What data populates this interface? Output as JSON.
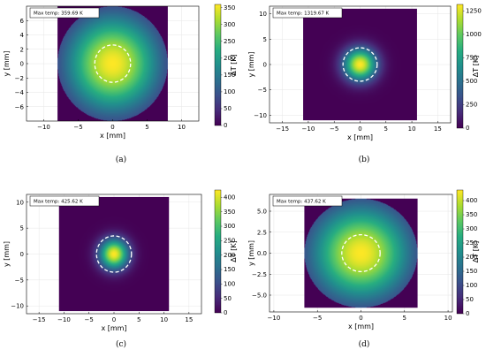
{
  "colors": {
    "viridis": [
      "#440154",
      "#472c7a",
      "#3b518b",
      "#2c718e",
      "#21908d",
      "#27ad81",
      "#5cc863",
      "#aadc32",
      "#fde725"
    ],
    "background": "#440154",
    "beam_circle": "#ffffff"
  },
  "chart_data": [
    {
      "id": "a",
      "type": "heatmap",
      "caption": "(a)",
      "legend": "Max temp: 359.69 K",
      "xlabel": "x [mm]",
      "ylabel": "y [mm]",
      "cbar_label": "ΔT [K]",
      "xlim": [
        -12.5,
        12.5
      ],
      "ylim": [
        -8,
        8
      ],
      "xticks": [
        -10,
        -5,
        0,
        5,
        10
      ],
      "xticklabels": [
        "−10",
        "−5",
        "0",
        "5",
        "10"
      ],
      "yticks": [
        -6,
        -4,
        -2,
        0,
        2,
        4,
        6
      ],
      "yticklabels": [
        "−6",
        "−4",
        "−2",
        "0",
        "2",
        "4",
        "6"
      ],
      "square": [
        -8,
        8,
        -8,
        8
      ],
      "disk_radius": 8,
      "beam_radius": 2.6,
      "spread": 4.8,
      "max_temp": 359.69,
      "cbar_ticks": [
        0,
        50,
        100,
        150,
        200,
        250,
        300,
        350
      ],
      "cbar_ticklabels": [
        "0",
        "50",
        "100",
        "150",
        "200",
        "250",
        "300",
        "350"
      ]
    },
    {
      "id": "b",
      "type": "heatmap",
      "caption": "(b)",
      "legend": "Max temp: 1319.67 K",
      "xlabel": "x [mm]",
      "ylabel": "y [mm]",
      "cbar_label": "ΔT [K]",
      "xlim": [
        -17.5,
        17.5
      ],
      "ylim": [
        -11.5,
        11.5
      ],
      "xticks": [
        -15,
        -10,
        -5,
        0,
        5,
        10,
        15
      ],
      "xticklabels": [
        "−15",
        "−10",
        "−5",
        "0",
        "5",
        "10",
        "15"
      ],
      "yticks": [
        -10,
        -5,
        0,
        5,
        10
      ],
      "yticklabels": [
        "−10",
        "−5",
        "0",
        "5",
        "10"
      ],
      "square": [
        -11,
        11,
        -11,
        11
      ],
      "disk_radius": null,
      "beam_radius": 3.3,
      "spread": 2.2,
      "max_temp": 1319.67,
      "cbar_ticks": [
        0,
        250,
        500,
        750,
        1000,
        1250
      ],
      "cbar_ticklabels": [
        "0",
        "250",
        "500",
        "750",
        "1000",
        "1250"
      ]
    },
    {
      "id": "c",
      "type": "heatmap",
      "caption": "(c)",
      "legend": "Max temp: 425.62 K",
      "xlabel": "x [mm]",
      "ylabel": "y [mm]",
      "cbar_label": "ΔT [K]",
      "xlim": [
        -17.5,
        17.5
      ],
      "ylim": [
        -11.5,
        11.5
      ],
      "xticks": [
        -15,
        -10,
        -5,
        0,
        5,
        10,
        15
      ],
      "xticklabels": [
        "−15",
        "−10",
        "−5",
        "0",
        "5",
        "10",
        "15"
      ],
      "yticks": [
        -10,
        -5,
        0,
        5,
        10
      ],
      "yticklabels": [
        "−10",
        "−5",
        "0",
        "5",
        "10"
      ],
      "square": [
        -11,
        11,
        -11,
        11
      ],
      "disk_radius": null,
      "beam_radius": 3.5,
      "spread": 2.0,
      "max_temp": 425.62,
      "cbar_ticks": [
        0,
        50,
        100,
        150,
        200,
        250,
        300,
        350,
        400
      ],
      "cbar_ticklabels": [
        "0",
        "50",
        "100",
        "150",
        "200",
        "250",
        "300",
        "350",
        "400"
      ]
    },
    {
      "id": "d",
      "type": "heatmap",
      "caption": "(d)",
      "legend": "Max temp: 437.62 K",
      "xlabel": "x [mm]",
      "ylabel": "y [mm]",
      "cbar_label": "ΔT [K]",
      "xlim": [
        -10.5,
        10.5
      ],
      "ylim": [
        -7,
        7
      ],
      "xticks": [
        -10,
        -5,
        0,
        5,
        10
      ],
      "xticklabels": [
        "−10",
        "−5",
        "0",
        "5",
        "10"
      ],
      "yticks": [
        -5,
        -2.5,
        0,
        2.5,
        5
      ],
      "yticklabels": [
        "−5.0",
        "−2.5",
        "0.0",
        "2.5",
        "5.0"
      ],
      "square": [
        -6.5,
        6.5,
        -6.5,
        6.5
      ],
      "disk_radius": 6.5,
      "beam_radius": 2.2,
      "spread": 4.0,
      "max_temp": 437.62,
      "cbar_ticks": [
        0,
        50,
        100,
        150,
        200,
        250,
        300,
        350,
        400
      ],
      "cbar_ticklabels": [
        "0",
        "50",
        "100",
        "150",
        "200",
        "250",
        "300",
        "350",
        "400"
      ]
    }
  ]
}
